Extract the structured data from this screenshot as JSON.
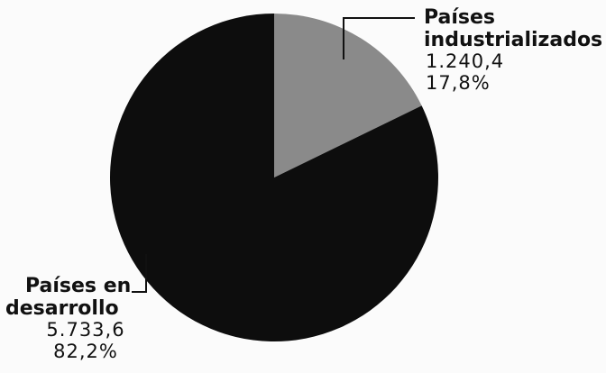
{
  "chart_data": {
    "type": "pie",
    "slices": [
      {
        "name_line1": "Países",
        "name_line2": "industrializados",
        "value": 1240.4,
        "value_label": "1.240,4",
        "percent": 17.8,
        "percent_label": "17,8%",
        "color": "#8a8a8a"
      },
      {
        "name_line1": "Países en",
        "name_line2": "desarrollo",
        "value": 5733.6,
        "value_label": "5.733,6",
        "percent": 82.2,
        "percent_label": "82,2%",
        "color": "#0d0d0d"
      }
    ],
    "start_angle_deg": 0,
    "direction": "clockwise"
  }
}
